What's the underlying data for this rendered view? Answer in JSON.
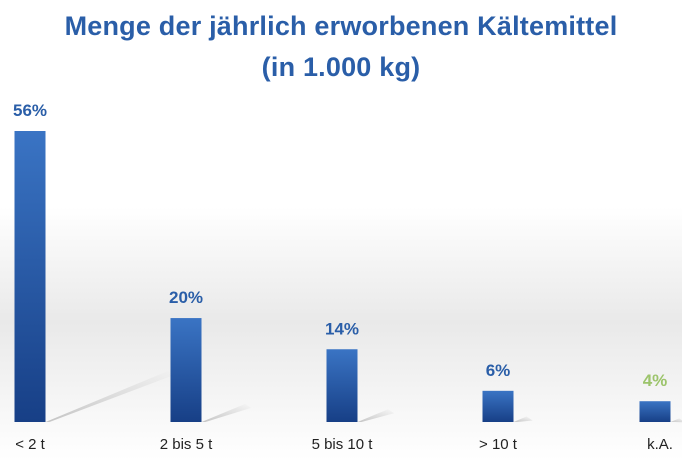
{
  "chart_data": {
    "type": "bar",
    "title": "Menge der jährlich erworbenen Kältemittel",
    "subtitle": "(in 1.000 kg)",
    "categories": [
      "< 2 t",
      "2 bis 5 t",
      "5 bis 10 t",
      "> 10 t",
      "k.A."
    ],
    "values": [
      56,
      20,
      14,
      6,
      4
    ],
    "value_labels": [
      "56%",
      "20%",
      "14%",
      "6%",
      "4%"
    ],
    "unit": "%",
    "ylim": [
      0,
      56
    ],
    "grid": false,
    "legend": "none",
    "colors": {
      "bar_top": "#3a74c4",
      "bar_bottom": "#173f86",
      "label": "#2a5ea8",
      "label_highlight": "#9cc46b",
      "title": "#2a5ea8"
    },
    "highlight_label_index": 4
  }
}
